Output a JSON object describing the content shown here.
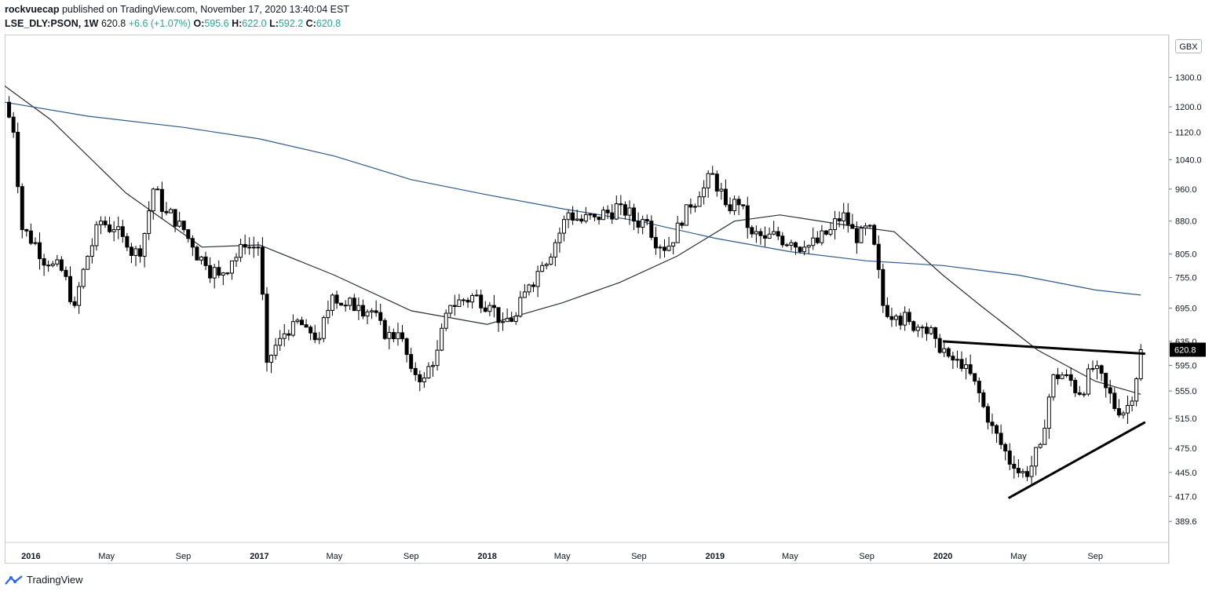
{
  "header": {
    "author": "rockvuecap",
    "published_text": "published on TradingView.com, November 17, 2020 13:40:04 EST",
    "symbol": "LSE_DLY:PSON, 1W",
    "last": "620.8",
    "change": "+6.6 (+1.07%)",
    "o_label": "O:",
    "o_value": "595.6",
    "h_label": "H:",
    "h_value": "622.0",
    "l_label": "L:",
    "l_value": "592.2",
    "c_label": "C:",
    "c_value": "620.8"
  },
  "currency_badge": "GBX",
  "brand": {
    "name": "TradingView"
  },
  "colors": {
    "candle_up": "#ffffff",
    "candle_down": "#000000",
    "ma_short": "#2a2e39",
    "ma_long": "#2f5a8a",
    "trendline": "#000000",
    "price_tag": "#000000",
    "grid": "#e6e6e6"
  },
  "chart_data": {
    "type": "candlestick",
    "title": "",
    "xlabel": "",
    "ylabel": "",
    "y_scale": "log",
    "ylim": [
      368,
      1460
    ],
    "y_ticks": [
      "1300.0",
      "1200.0",
      "1120.0",
      "1040.0",
      "960.0",
      "880.0",
      "805.0",
      "755.0",
      "695.0",
      "635.0",
      "595.0",
      "555.0",
      "515.0",
      "475.0",
      "445.0",
      "417.0",
      "389.6"
    ],
    "x_ticks": [
      "2016",
      "May",
      "Sep",
      "2017",
      "May",
      "Sep",
      "2018",
      "May",
      "Sep",
      "2019",
      "May",
      "Sep",
      "2020",
      "May",
      "Sep"
    ],
    "x_tick_dates": [
      "2016-01-01",
      "2016-05-01",
      "2016-09-01",
      "2017-01-01",
      "2017-05-01",
      "2017-09-01",
      "2018-01-01",
      "2018-05-01",
      "2018-09-01",
      "2019-01-01",
      "2019-05-01",
      "2019-09-01",
      "2020-01-01",
      "2020-05-01",
      "2020-09-01"
    ],
    "x_range": [
      "2015-11-20",
      "2020-12-28"
    ],
    "last_price_label": "620.8",
    "close_series_approx": [
      [
        "2015-11-20",
        1215
      ],
      [
        "2015-12-04",
        1120
      ],
      [
        "2015-12-18",
        860
      ],
      [
        "2016-01-08",
        830
      ],
      [
        "2016-01-29",
        780
      ],
      [
        "2016-02-19",
        770
      ],
      [
        "2016-03-11",
        700
      ],
      [
        "2016-04-01",
        800
      ],
      [
        "2016-04-22",
        880
      ],
      [
        "2016-05-13",
        860
      ],
      [
        "2016-06-03",
        820
      ],
      [
        "2016-06-24",
        800
      ],
      [
        "2016-07-15",
        960
      ],
      [
        "2016-08-05",
        900
      ],
      [
        "2016-08-26",
        880
      ],
      [
        "2016-09-16",
        820
      ],
      [
        "2016-10-07",
        780
      ],
      [
        "2016-10-28",
        760
      ],
      [
        "2016-11-18",
        790
      ],
      [
        "2016-12-09",
        820
      ],
      [
        "2016-12-30",
        820
      ],
      [
        "2017-01-13",
        600
      ],
      [
        "2017-02-03",
        640
      ],
      [
        "2017-02-24",
        670
      ],
      [
        "2017-03-17",
        660
      ],
      [
        "2017-04-07",
        640
      ],
      [
        "2017-04-28",
        720
      ],
      [
        "2017-05-19",
        700
      ],
      [
        "2017-06-09",
        700
      ],
      [
        "2017-06-30",
        690
      ],
      [
        "2017-07-21",
        640
      ],
      [
        "2017-08-11",
        650
      ],
      [
        "2017-09-01",
        590
      ],
      [
        "2017-09-22",
        575
      ],
      [
        "2017-10-13",
        620
      ],
      [
        "2017-11-03",
        700
      ],
      [
        "2017-11-24",
        710
      ],
      [
        "2017-12-15",
        720
      ],
      [
        "2018-01-05",
        700
      ],
      [
        "2018-01-26",
        670
      ],
      [
        "2018-02-16",
        680
      ],
      [
        "2018-03-09",
        740
      ],
      [
        "2018-03-30",
        780
      ],
      [
        "2018-04-20",
        830
      ],
      [
        "2018-05-11",
        900
      ],
      [
        "2018-06-01",
        880
      ],
      [
        "2018-06-22",
        890
      ],
      [
        "2018-07-13",
        900
      ],
      [
        "2018-08-03",
        920
      ],
      [
        "2018-08-24",
        880
      ],
      [
        "2018-09-14",
        880
      ],
      [
        "2018-10-05",
        820
      ],
      [
        "2018-10-26",
        830
      ],
      [
        "2018-11-16",
        920
      ],
      [
        "2018-12-07",
        940
      ],
      [
        "2018-12-28",
        1000
      ],
      [
        "2019-01-18",
        920
      ],
      [
        "2019-02-08",
        920
      ],
      [
        "2019-03-01",
        850
      ],
      [
        "2019-03-22",
        840
      ],
      [
        "2019-04-12",
        845
      ],
      [
        "2019-05-03",
        830
      ],
      [
        "2019-05-24",
        820
      ],
      [
        "2019-06-14",
        830
      ],
      [
        "2019-07-05",
        860
      ],
      [
        "2019-07-26",
        900
      ],
      [
        "2019-08-16",
        830
      ],
      [
        "2019-09-06",
        870
      ],
      [
        "2019-09-27",
        700
      ],
      [
        "2019-10-18",
        680
      ],
      [
        "2019-11-08",
        670
      ],
      [
        "2019-11-29",
        660
      ],
      [
        "2019-12-20",
        640
      ],
      [
        "2020-01-10",
        610
      ],
      [
        "2020-01-31",
        590
      ],
      [
        "2020-02-21",
        570
      ],
      [
        "2020-03-13",
        510
      ],
      [
        "2020-04-03",
        480
      ],
      [
        "2020-04-24",
        450
      ],
      [
        "2020-05-15",
        440
      ],
      [
        "2020-06-05",
        480
      ],
      [
        "2020-06-26",
        580
      ],
      [
        "2020-07-17",
        580
      ],
      [
        "2020-08-07",
        550
      ],
      [
        "2020-08-28",
        590
      ],
      [
        "2020-09-18",
        560
      ],
      [
        "2020-10-09",
        520
      ],
      [
        "2020-10-30",
        540
      ],
      [
        "2020-11-13",
        620.8
      ]
    ],
    "moving_averages": [
      {
        "points": [
          [
            "2015-11-20",
            1270
          ],
          [
            "2016-02-01",
            1160
          ],
          [
            "2016-06-01",
            950
          ],
          [
            "2016-10-01",
            820
          ],
          [
            "2017-01-01",
            825
          ],
          [
            "2017-05-01",
            760
          ],
          [
            "2017-09-01",
            690
          ],
          [
            "2018-01-01",
            665
          ],
          [
            "2018-05-01",
            705
          ],
          [
            "2018-08-01",
            745
          ],
          [
            "2018-11-01",
            800
          ],
          [
            "2019-02-01",
            880
          ],
          [
            "2019-04-15",
            895
          ],
          [
            "2019-08-01",
            870
          ],
          [
            "2019-10-15",
            855
          ],
          [
            "2020-01-01",
            760
          ],
          [
            "2020-03-01",
            700
          ],
          [
            "2020-06-01",
            620
          ],
          [
            "2020-09-01",
            570
          ],
          [
            "2020-11-13",
            550
          ]
        ]
      },
      {
        "points": [
          [
            "2015-11-20",
            1215
          ],
          [
            "2016-04-01",
            1170
          ],
          [
            "2016-09-01",
            1135
          ],
          [
            "2017-01-01",
            1100
          ],
          [
            "2017-05-01",
            1050
          ],
          [
            "2017-09-01",
            985
          ],
          [
            "2018-01-01",
            945
          ],
          [
            "2018-05-01",
            910
          ],
          [
            "2018-09-01",
            880
          ],
          [
            "2019-01-01",
            840
          ],
          [
            "2019-05-01",
            810
          ],
          [
            "2019-09-01",
            790
          ],
          [
            "2020-01-01",
            780
          ],
          [
            "2020-05-01",
            760
          ],
          [
            "2020-09-01",
            730
          ],
          [
            "2020-11-13",
            720
          ]
        ]
      }
    ],
    "trendlines": [
      {
        "from": [
          "2020-01-01",
          635
        ],
        "to": [
          "2020-11-20",
          614
        ]
      },
      {
        "from": [
          "2020-04-15",
          415
        ],
        "to": [
          "2020-11-20",
          510
        ]
      }
    ]
  }
}
